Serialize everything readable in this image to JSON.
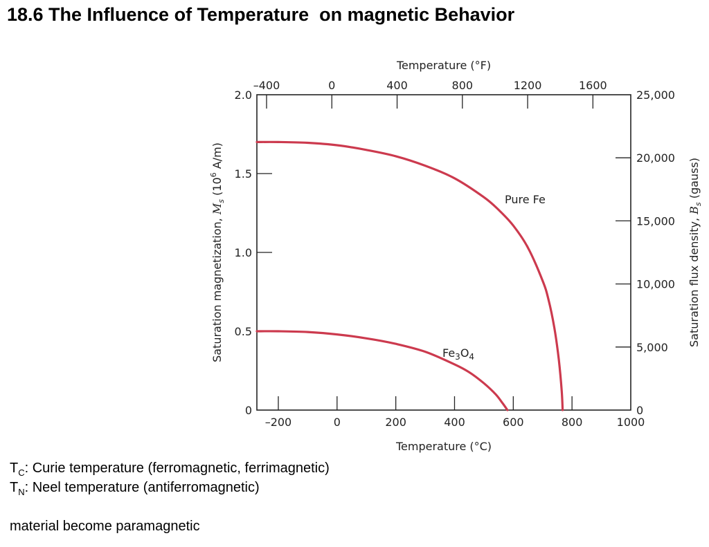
{
  "slide": {
    "title": "18.6 The Influence of Temperature  on magnetic Behavior"
  },
  "chart_data": {
    "type": "line",
    "title": "",
    "xlabel": "Temperature (°C)",
    "xlabel_top": "Temperature (°F)",
    "ylabel": "Saturation magnetization, M_s (10^6 A/m)",
    "ylabel_right": "Saturation flux density, B_s (gauss)",
    "xlim": [
      -273,
      1000
    ],
    "ylim": [
      0,
      2.0
    ],
    "x_ticks": [
      -200,
      0,
      200,
      400,
      600,
      800,
      1000
    ],
    "x_tick_labels": [
      "–200",
      "0",
      "200",
      "400",
      "600",
      "800",
      "1000"
    ],
    "x_top_ticks_F": [
      -400,
      0,
      400,
      800,
      1200,
      1600
    ],
    "x_top_tick_labels": [
      "–400",
      "0",
      "400",
      "800",
      "1200",
      "1600"
    ],
    "y_ticks": [
      0,
      0.5,
      1.0,
      1.5,
      2.0
    ],
    "y_tick_labels": [
      "0",
      "0.5",
      "1.0",
      "1.5",
      "2.0"
    ],
    "y_right_ticks_gauss": [
      0,
      5000,
      10000,
      15000,
      20000,
      25000
    ],
    "y_right_tick_labels": [
      "0",
      "5,000",
      "10,000",
      "15,000",
      "20,000",
      "25,000"
    ],
    "grid": false,
    "line_color": "#cc3a4e",
    "series": [
      {
        "name": "Pure Fe",
        "x": [
          -273,
          -200,
          -100,
          0,
          100,
          200,
          300,
          400,
          500,
          550,
          600,
          650,
          700,
          720,
          740,
          755,
          765,
          768
        ],
        "y": [
          1.7,
          1.7,
          1.695,
          1.68,
          1.65,
          1.61,
          1.55,
          1.47,
          1.35,
          1.27,
          1.17,
          1.03,
          0.82,
          0.7,
          0.52,
          0.32,
          0.12,
          0.0
        ]
      },
      {
        "name": "Fe3O4",
        "x": [
          -273,
          -200,
          -100,
          0,
          100,
          200,
          300,
          400,
          450,
          500,
          540,
          565,
          580
        ],
        "y": [
          0.5,
          0.5,
          0.495,
          0.48,
          0.455,
          0.42,
          0.37,
          0.29,
          0.24,
          0.17,
          0.1,
          0.04,
          0.0
        ]
      }
    ]
  },
  "labels": {
    "pure_fe": "Pure Fe",
    "fe3o4_main": "Fe",
    "fe3o4_sub1": "3",
    "fe3o4_mid": "O",
    "fe3o4_sub2": "4",
    "xlabel_main": "Temperature (°C)",
    "xlabel_top": "Temperature (°F)",
    "ylabel_left_a": "Saturation magnetization, ",
    "ylabel_left_var": "M",
    "ylabel_left_sub": "s",
    "ylabel_left_b": " (10",
    "ylabel_left_sup": "6",
    "ylabel_left_c": " A/m)",
    "ylabel_right_a": "Saturation flux density, ",
    "ylabel_right_var": "B",
    "ylabel_right_sub": "s",
    "ylabel_right_b": " (gauss)"
  },
  "notes": {
    "tc_symbol": "T",
    "tc_sub": "C",
    "tc_text": ": Curie temperature (ferromagnetic, ferrimagnetic)",
    "tn_symbol": "T",
    "tn_sub": "N",
    "tn_text": ": Neel temperature (antiferromagnetic)",
    "summary": "material become paramagnetic"
  }
}
